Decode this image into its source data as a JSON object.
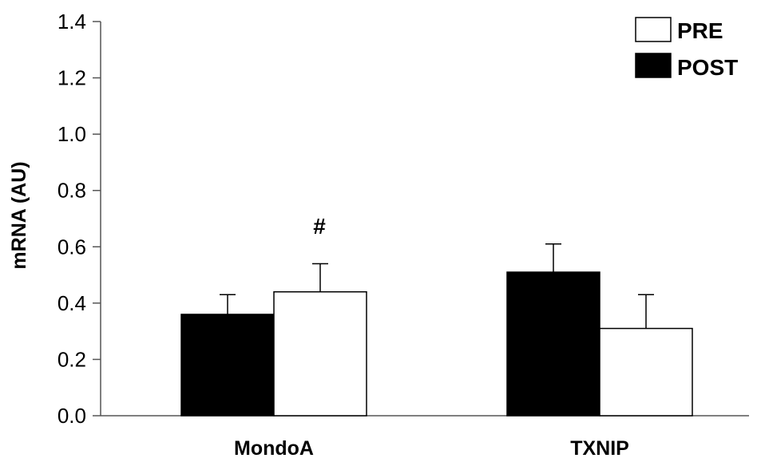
{
  "chart_data": {
    "type": "bar",
    "categories": [
      "MondoA",
      "TXNIP"
    ],
    "series": [
      {
        "name": "POST",
        "color": "#000000",
        "values": [
          0.36,
          0.51
        ],
        "errors": [
          0.07,
          0.1
        ]
      },
      {
        "name": "PRE",
        "color": "#ffffff",
        "values": [
          0.44,
          0.31
        ],
        "errors": [
          0.1,
          0.12
        ]
      }
    ],
    "ylabel": "mRNA (AU)",
    "xlabel": "",
    "ylim": [
      0,
      1.4
    ],
    "yticks": [
      "0.0",
      "0.2",
      "0.4",
      "0.6",
      "0.8",
      "1.0",
      "1.2",
      "1.4"
    ],
    "grid": false,
    "legend": {
      "placement": "top-right",
      "entries": [
        {
          "label": "PRE",
          "fill": "#ffffff"
        },
        {
          "label": "POST",
          "fill": "#000000"
        }
      ]
    },
    "annotations": [
      {
        "category": "MondoA",
        "series": "PRE",
        "text": "#"
      }
    ]
  }
}
